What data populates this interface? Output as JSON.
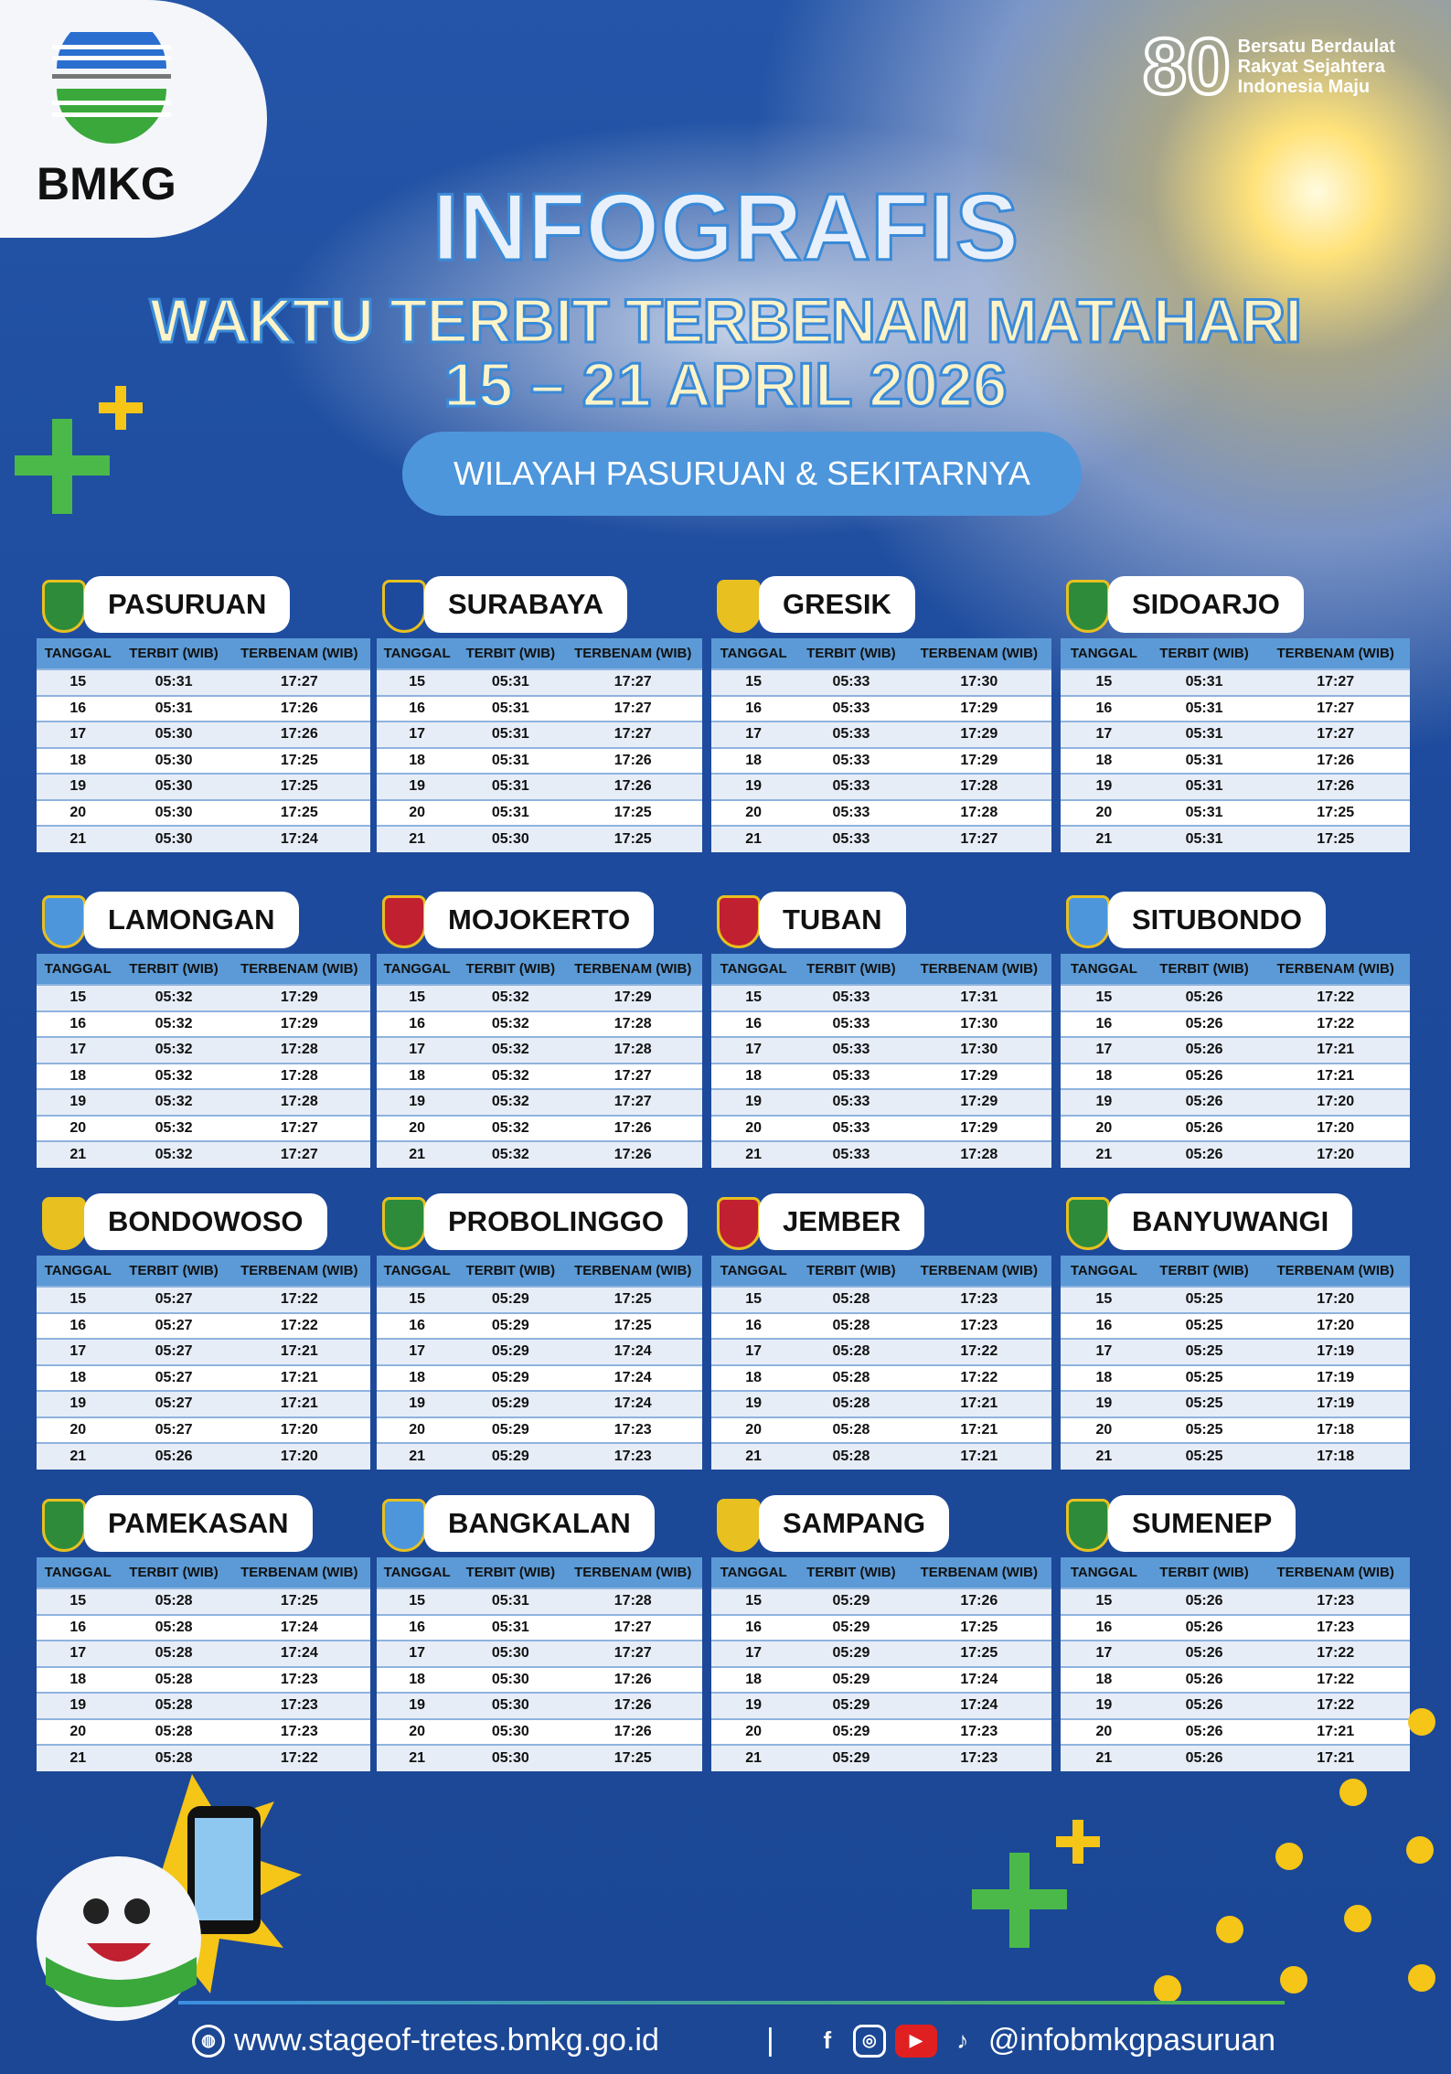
{
  "header": {
    "logo_text": "BMKG",
    "badge_number": "80",
    "badge_lines": [
      "Bersatu Berdaulat",
      "Rakyat Sejahtera",
      "Indonesia Maju"
    ],
    "title": "INFOGRAFIS",
    "subtitle": "WAKTU TERBIT TERBENAM MATAHARI",
    "date_range": "15 – 21 APRIL 2026",
    "region": "WILAYAH PASURUAN & SEKITARNYA"
  },
  "columns": [
    "TANGGAL",
    "TERBIT (WIB)",
    "TERBENAM (WIB)"
  ],
  "dates": [
    "15",
    "16",
    "17",
    "18",
    "19",
    "20",
    "21"
  ],
  "cities": [
    {
      "name": "PASURUAN",
      "rise": [
        "05:31",
        "05:31",
        "05:30",
        "05:30",
        "05:30",
        "05:30",
        "05:30"
      ],
      "set": [
        "17:27",
        "17:26",
        "17:26",
        "17:25",
        "17:25",
        "17:25",
        "17:24"
      ]
    },
    {
      "name": "SURABAYA",
      "rise": [
        "05:31",
        "05:31",
        "05:31",
        "05:31",
        "05:31",
        "05:31",
        "05:30"
      ],
      "set": [
        "17:27",
        "17:27",
        "17:27",
        "17:26",
        "17:26",
        "17:25",
        "17:25"
      ]
    },
    {
      "name": "GRESIK",
      "rise": [
        "05:33",
        "05:33",
        "05:33",
        "05:33",
        "05:33",
        "05:33",
        "05:33"
      ],
      "set": [
        "17:30",
        "17:29",
        "17:29",
        "17:29",
        "17:28",
        "17:28",
        "17:27"
      ]
    },
    {
      "name": "SIDOARJO",
      "rise": [
        "05:31",
        "05:31",
        "05:31",
        "05:31",
        "05:31",
        "05:31",
        "05:31"
      ],
      "set": [
        "17:27",
        "17:27",
        "17:27",
        "17:26",
        "17:26",
        "17:25",
        "17:25"
      ]
    },
    {
      "name": "LAMONGAN",
      "rise": [
        "05:32",
        "05:32",
        "05:32",
        "05:32",
        "05:32",
        "05:32",
        "05:32"
      ],
      "set": [
        "17:29",
        "17:29",
        "17:28",
        "17:28",
        "17:28",
        "17:27",
        "17:27"
      ]
    },
    {
      "name": "MOJOKERTO",
      "rise": [
        "05:32",
        "05:32",
        "05:32",
        "05:32",
        "05:32",
        "05:32",
        "05:32"
      ],
      "set": [
        "17:29",
        "17:28",
        "17:28",
        "17:27",
        "17:27",
        "17:26",
        "17:26"
      ]
    },
    {
      "name": "TUBAN",
      "rise": [
        "05:33",
        "05:33",
        "05:33",
        "05:33",
        "05:33",
        "05:33",
        "05:33"
      ],
      "set": [
        "17:31",
        "17:30",
        "17:30",
        "17:29",
        "17:29",
        "17:29",
        "17:28"
      ]
    },
    {
      "name": "SITUBONDO",
      "rise": [
        "05:26",
        "05:26",
        "05:26",
        "05:26",
        "05:26",
        "05:26",
        "05:26"
      ],
      "set": [
        "17:22",
        "17:22",
        "17:21",
        "17:21",
        "17:20",
        "17:20",
        "17:20"
      ]
    },
    {
      "name": "BONDOWOSO",
      "rise": [
        "05:27",
        "05:27",
        "05:27",
        "05:27",
        "05:27",
        "05:27",
        "05:26"
      ],
      "set": [
        "17:22",
        "17:22",
        "17:21",
        "17:21",
        "17:21",
        "17:20",
        "17:20"
      ]
    },
    {
      "name": "PROBOLINGGO",
      "rise": [
        "05:29",
        "05:29",
        "05:29",
        "05:29",
        "05:29",
        "05:29",
        "05:29"
      ],
      "set": [
        "17:25",
        "17:25",
        "17:24",
        "17:24",
        "17:24",
        "17:23",
        "17:23"
      ]
    },
    {
      "name": "JEMBER",
      "rise": [
        "05:28",
        "05:28",
        "05:28",
        "05:28",
        "05:28",
        "05:28",
        "05:28"
      ],
      "set": [
        "17:23",
        "17:23",
        "17:22",
        "17:22",
        "17:21",
        "17:21",
        "17:21"
      ]
    },
    {
      "name": "BANYUWANGI",
      "rise": [
        "05:25",
        "05:25",
        "05:25",
        "05:25",
        "05:25",
        "05:25",
        "05:25"
      ],
      "set": [
        "17:20",
        "17:20",
        "17:19",
        "17:19",
        "17:19",
        "17:18",
        "17:18"
      ]
    },
    {
      "name": "PAMEKASAN",
      "rise": [
        "05:28",
        "05:28",
        "05:28",
        "05:28",
        "05:28",
        "05:28",
        "05:28"
      ],
      "set": [
        "17:25",
        "17:24",
        "17:24",
        "17:23",
        "17:23",
        "17:23",
        "17:22"
      ]
    },
    {
      "name": "BANGKALAN",
      "rise": [
        "05:31",
        "05:31",
        "05:30",
        "05:30",
        "05:30",
        "05:30",
        "05:30"
      ],
      "set": [
        "17:28",
        "17:27",
        "17:27",
        "17:26",
        "17:26",
        "17:26",
        "17:25"
      ]
    },
    {
      "name": "SAMPANG",
      "rise": [
        "05:29",
        "05:29",
        "05:29",
        "05:29",
        "05:29",
        "05:29",
        "05:29"
      ],
      "set": [
        "17:26",
        "17:25",
        "17:25",
        "17:24",
        "17:24",
        "17:23",
        "17:23"
      ]
    },
    {
      "name": "SUMENEP",
      "rise": [
        "05:26",
        "05:26",
        "05:26",
        "05:26",
        "05:26",
        "05:26",
        "05:26"
      ],
      "set": [
        "17:23",
        "17:23",
        "17:22",
        "17:22",
        "17:22",
        "17:21",
        "17:21"
      ]
    }
  ],
  "footer": {
    "website": "www.stageof-tretes.bmkg.go.id",
    "separator": "|",
    "social_handle": "@infobmkgpasuruan",
    "icons": [
      "globe-icon",
      "facebook-icon",
      "instagram-icon",
      "youtube-icon",
      "tiktok-icon"
    ]
  },
  "colors": {
    "background": "#1d4a9c",
    "table_header": "#5b9ad6",
    "pill": "#4d96dc",
    "accent_green": "#4bb94a",
    "accent_yellow": "#f5c518"
  }
}
